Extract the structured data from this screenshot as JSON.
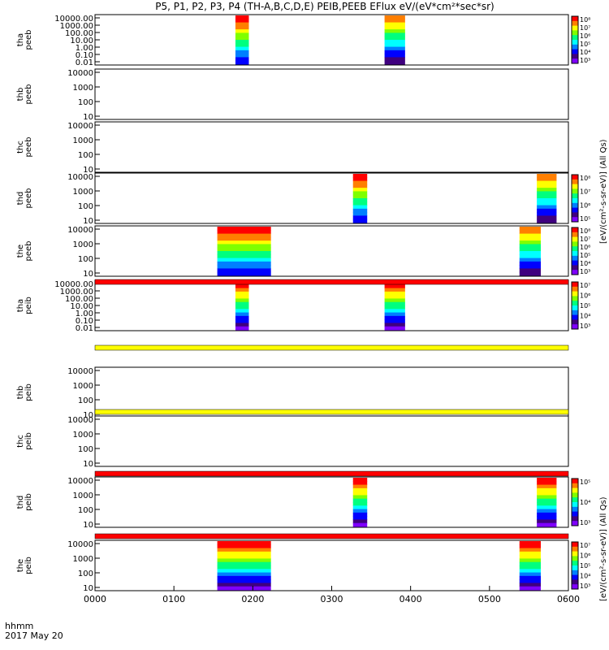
{
  "chart_data": {
    "type": "heatmap",
    "title": "P5, P1, P2, P3, P4 (TH-A,B,C,D,E) PEIB,PEEB EFlux eV/(eV*cm²*sec*sr)",
    "xaxis": {
      "ticks": [
        "0000",
        "0100",
        "0200",
        "0300",
        "0400",
        "0500",
        "0600"
      ],
      "tick_values_hours": [
        0,
        1,
        2,
        3,
        4,
        5,
        6
      ],
      "range_hours": [
        0,
        6
      ],
      "label_line1": "hhmm",
      "label_line2": "2017 May 20"
    },
    "colorbar_label_a": "[eV/(cm²-s-sr-eV)] (All Qs)",
    "colorbar_label_b": "[eV/(cm²-s-sr-eV)] (All Qs)",
    "panels": [
      {
        "probe": "tha",
        "product": "peeb",
        "ylog": true,
        "yticks": [
          "10000.00",
          "1000.00",
          "100.00",
          "10.00",
          "1.00",
          "0.10",
          "0.01"
        ],
        "colorbar": [
          "10⁸",
          "10⁷",
          "10⁶",
          "10⁵",
          "10⁴",
          "10³"
        ],
        "coverage_hours": [
          [
            1.78,
            1.95
          ],
          [
            3.67,
            3.93
          ]
        ]
      },
      {
        "probe": "thb",
        "product": "peeb",
        "ylog": true,
        "yticks": [
          "10000",
          "1000",
          "100",
          "10"
        ],
        "colorbar": [],
        "coverage_hours": []
      },
      {
        "probe": "thc",
        "product": "peeb",
        "ylog": true,
        "yticks": [
          "10000",
          "1000",
          "100",
          "10"
        ],
        "colorbar": [],
        "coverage_hours": []
      },
      {
        "probe": "thd",
        "product": "peeb",
        "ylog": true,
        "yticks": [
          "10000",
          "1000",
          "100",
          "10"
        ],
        "colorbar": [
          "10⁸",
          "10⁷",
          "10⁶",
          "10⁵"
        ],
        "coverage_hours": [
          [
            3.27,
            3.45
          ],
          [
            5.6,
            5.85
          ]
        ]
      },
      {
        "probe": "the",
        "product": "peeb",
        "ylog": true,
        "yticks": [
          "10000",
          "1000",
          "100",
          "10"
        ],
        "colorbar": [
          "10⁸",
          "10⁷",
          "10⁶",
          "10⁵",
          "10⁴",
          "10³"
        ],
        "coverage_hours": [
          [
            1.55,
            2.23
          ],
          [
            5.38,
            5.65
          ]
        ]
      },
      {
        "probe": "tha",
        "product": "peib",
        "ylog": true,
        "yticks": [
          "10000.00",
          "1000.00",
          "100.00",
          "10.00",
          "1.00",
          "0.10",
          "0.01"
        ],
        "colorbar": [
          "10⁷",
          "10⁶",
          "10⁵",
          "10⁴",
          "10³"
        ],
        "coverage_hours": [
          [
            1.78,
            1.95
          ],
          [
            3.67,
            3.93
          ]
        ]
      },
      {
        "probe": "thb",
        "product": "peib",
        "ylog": true,
        "yticks": [
          "10000",
          "1000",
          "100",
          "10"
        ],
        "colorbar": [],
        "coverage_hours": []
      },
      {
        "probe": "thc",
        "product": "peib",
        "ylog": true,
        "yticks": [
          "10000",
          "1000",
          "100",
          "10"
        ],
        "colorbar": [],
        "coverage_hours": []
      },
      {
        "probe": "thd",
        "product": "peib",
        "ylog": true,
        "yticks": [
          "10000",
          "1000",
          "100",
          "10"
        ],
        "colorbar": [
          "10⁵",
          "10⁴",
          "10³"
        ],
        "coverage_hours": [
          [
            3.27,
            3.45
          ],
          [
            5.6,
            5.85
          ]
        ]
      },
      {
        "probe": "the",
        "product": "peib",
        "ylog": true,
        "yticks": [
          "10000",
          "1000",
          "100",
          "10"
        ],
        "colorbar": [
          "10⁷",
          "10⁶",
          "10⁵",
          "10⁴",
          "10³"
        ],
        "coverage_hours": [
          [
            1.55,
            2.23
          ],
          [
            5.38,
            5.65
          ]
        ]
      }
    ],
    "flag_bars": [
      {
        "after_panel": 4,
        "color": "#ff0000"
      },
      {
        "after_panel": 5,
        "color": "#ffff00"
      },
      {
        "after_panel": 6,
        "color": "#ffff00"
      },
      {
        "after_panel": 7,
        "color": "#ff0000"
      },
      {
        "after_panel": 8,
        "color": "#ff0000"
      }
    ],
    "colorscale": [
      "#ff0000",
      "#ff7f00",
      "#ffff00",
      "#7fff00",
      "#00ff7f",
      "#00ffff",
      "#007fff",
      "#0000ff",
      "#3f007f",
      "#7f00ff"
    ]
  }
}
